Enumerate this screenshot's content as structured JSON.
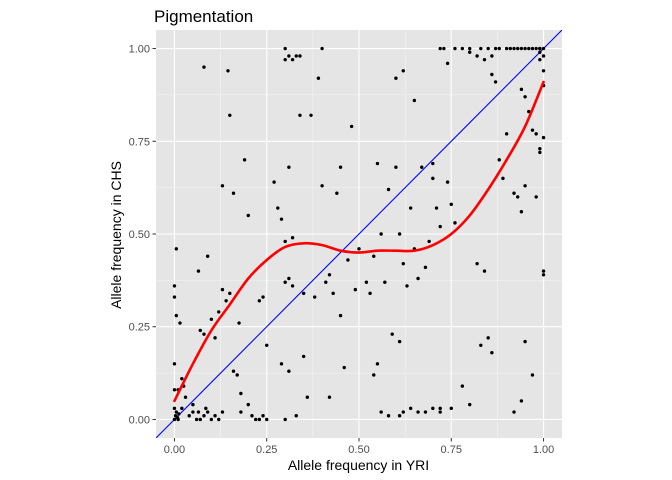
{
  "chart_data": {
    "type": "scatter",
    "title": "Pigmentation",
    "xlabel": "Allele frequency in YRI",
    "ylabel": "Allele frequency in CHS",
    "xlim": [
      -0.05,
      1.05
    ],
    "ylim": [
      -0.05,
      1.05
    ],
    "x_ticks": [
      0.0,
      0.25,
      0.5,
      0.75,
      1.0
    ],
    "x_tick_labels": [
      "0.00",
      "0.25",
      "0.50",
      "0.75",
      "1.00"
    ],
    "y_ticks": [
      0.0,
      0.25,
      0.5,
      0.75,
      1.0
    ],
    "y_tick_labels": [
      "0.00",
      "0.25",
      "0.50",
      "0.75",
      "1.00"
    ],
    "grid": true,
    "colors": {
      "panel": "#e5e5e5",
      "grid_major": "#ffffff",
      "points": "#000000",
      "identity_line": "#0000ff",
      "smooth_line": "#ff0000"
    },
    "points": [
      [
        0.0,
        0.0
      ],
      [
        0.003,
        0.01
      ],
      [
        0.005,
        0.02
      ],
      [
        0.008,
        0.005
      ],
      [
        0.0,
        0.03
      ],
      [
        0.012,
        0.015
      ],
      [
        0.01,
        0.0
      ],
      [
        0.0,
        0.15
      ],
      [
        0.0,
        0.08
      ],
      [
        0.0,
        0.33
      ],
      [
        0.0,
        0.36
      ],
      [
        0.005,
        0.46
      ],
      [
        0.005,
        0.28
      ],
      [
        0.015,
        0.26
      ],
      [
        0.01,
        0.08
      ],
      [
        0.02,
        0.11
      ],
      [
        0.025,
        0.09
      ],
      [
        0.03,
        0.06
      ],
      [
        0.02,
        0.03
      ],
      [
        0.04,
        0.01
      ],
      [
        0.05,
        0.02
      ],
      [
        0.05,
        0.04
      ],
      [
        0.06,
        0.0
      ],
      [
        0.065,
        0.02
      ],
      [
        0.07,
        0.0
      ],
      [
        0.08,
        0.01
      ],
      [
        0.085,
        0.03
      ],
      [
        0.09,
        0.02
      ],
      [
        0.1,
        0.0
      ],
      [
        0.11,
        0.01
      ],
      [
        0.12,
        0.0
      ],
      [
        0.13,
        0.02
      ],
      [
        0.065,
        0.4
      ],
      [
        0.07,
        0.24
      ],
      [
        0.08,
        0.23
      ],
      [
        0.09,
        0.44
      ],
      [
        0.1,
        0.27
      ],
      [
        0.11,
        0.22
      ],
      [
        0.12,
        0.29
      ],
      [
        0.13,
        0.35
      ],
      [
        0.13,
        0.63
      ],
      [
        0.14,
        0.32
      ],
      [
        0.145,
        0.94
      ],
      [
        0.15,
        0.82
      ],
      [
        0.15,
        0.34
      ],
      [
        0.16,
        0.61
      ],
      [
        0.16,
        0.13
      ],
      [
        0.17,
        0.12
      ],
      [
        0.175,
        0.26
      ],
      [
        0.18,
        0.07
      ],
      [
        0.18,
        0.02
      ],
      [
        0.19,
        0.7
      ],
      [
        0.2,
        0.55
      ],
      [
        0.08,
        0.95
      ],
      [
        0.2,
        0.04
      ],
      [
        0.21,
        0.01
      ],
      [
        0.22,
        0.0
      ],
      [
        0.23,
        0.0
      ],
      [
        0.24,
        0.01
      ],
      [
        0.25,
        0.0
      ],
      [
        0.23,
        0.32
      ],
      [
        0.24,
        0.33
      ],
      [
        0.25,
        0.2
      ],
      [
        0.27,
        0.64
      ],
      [
        0.28,
        0.57
      ],
      [
        0.29,
        0.54
      ],
      [
        0.3,
        0.48
      ],
      [
        0.3,
        0.97
      ],
      [
        0.3,
        1.0
      ],
      [
        0.31,
        0.98
      ],
      [
        0.32,
        0.97
      ],
      [
        0.33,
        0.98
      ],
      [
        0.34,
        0.98
      ],
      [
        0.34,
        0.82
      ],
      [
        0.31,
        0.68
      ],
      [
        0.32,
        0.49
      ],
      [
        0.32,
        0.36
      ],
      [
        0.31,
        0.38
      ],
      [
        0.3,
        0.37
      ],
      [
        0.29,
        0.15
      ],
      [
        0.31,
        0.13
      ],
      [
        0.3,
        0.0
      ],
      [
        0.33,
        0.01
      ],
      [
        0.35,
        0.17
      ],
      [
        0.35,
        0.34
      ],
      [
        0.36,
        0.06
      ],
      [
        0.37,
        0.82
      ],
      [
        0.38,
        0.33
      ],
      [
        0.39,
        0.92
      ],
      [
        0.4,
        1.0
      ],
      [
        0.4,
        0.63
      ],
      [
        0.41,
        0.37
      ],
      [
        0.42,
        0.39
      ],
      [
        0.42,
        0.06
      ],
      [
        0.43,
        0.34
      ],
      [
        0.44,
        0.61
      ],
      [
        0.45,
        0.68
      ],
      [
        0.45,
        0.28
      ],
      [
        0.46,
        0.14
      ],
      [
        0.47,
        0.43
      ],
      [
        0.48,
        0.79
      ],
      [
        0.49,
        0.35
      ],
      [
        0.5,
        0.46
      ],
      [
        0.52,
        0.37
      ],
      [
        0.53,
        0.34
      ],
      [
        0.54,
        0.44
      ],
      [
        0.55,
        0.15
      ],
      [
        0.55,
        0.69
      ],
      [
        0.56,
        0.5
      ],
      [
        0.57,
        0.37
      ],
      [
        0.58,
        0.62
      ],
      [
        0.59,
        0.23
      ],
      [
        0.6,
        0.68
      ],
      [
        0.61,
        0.5
      ],
      [
        0.61,
        0.21
      ],
      [
        0.62,
        0.94
      ],
      [
        0.6,
        0.92
      ],
      [
        0.62,
        0.42
      ],
      [
        0.63,
        0.36
      ],
      [
        0.64,
        0.57
      ],
      [
        0.65,
        0.46
      ],
      [
        0.65,
        0.86
      ],
      [
        0.66,
        0.38
      ],
      [
        0.67,
        0.68
      ],
      [
        0.68,
        0.41
      ],
      [
        0.69,
        0.48
      ],
      [
        0.7,
        0.69
      ],
      [
        0.7,
        0.65
      ],
      [
        0.71,
        0.57
      ],
      [
        0.72,
        0.52
      ],
      [
        0.72,
        0.02
      ],
      [
        0.72,
        0.03
      ],
      [
        0.74,
        0.96
      ],
      [
        0.74,
        0.64
      ],
      [
        0.75,
        0.58
      ],
      [
        0.76,
        0.53
      ],
      [
        0.75,
        0.03
      ],
      [
        0.7,
        0.03
      ],
      [
        0.68,
        0.02
      ],
      [
        0.66,
        0.02
      ],
      [
        0.64,
        0.03
      ],
      [
        0.62,
        0.02
      ],
      [
        0.61,
        0.01
      ],
      [
        0.58,
        0.01
      ],
      [
        0.56,
        0.02
      ],
      [
        0.54,
        0.12
      ],
      [
        0.72,
        1.0
      ],
      [
        0.73,
        1.0
      ],
      [
        0.76,
        1.0
      ],
      [
        0.78,
        1.0
      ],
      [
        0.8,
        1.0
      ],
      [
        0.83,
        1.0
      ],
      [
        0.85,
        1.0
      ],
      [
        0.87,
        1.0
      ],
      [
        0.88,
        1.0
      ],
      [
        0.9,
        1.0
      ],
      [
        0.91,
        1.0
      ],
      [
        0.92,
        1.0
      ],
      [
        0.93,
        1.0
      ],
      [
        0.94,
        1.0
      ],
      [
        0.95,
        1.0
      ],
      [
        0.96,
        1.0
      ],
      [
        0.97,
        1.0
      ],
      [
        0.98,
        1.0
      ],
      [
        0.99,
        1.0
      ],
      [
        1.0,
        1.0
      ],
      [
        0.99,
        0.99
      ],
      [
        1.0,
        0.98
      ],
      [
        0.99,
        0.97
      ],
      [
        0.8,
        0.99
      ],
      [
        0.82,
        0.98
      ],
      [
        0.84,
        0.97
      ],
      [
        0.86,
        0.98
      ],
      [
        0.87,
        0.91
      ],
      [
        0.86,
        0.93
      ],
      [
        0.89,
        0.65
      ],
      [
        0.88,
        0.7
      ],
      [
        0.9,
        0.77
      ],
      [
        0.92,
        0.61
      ],
      [
        0.93,
        0.6
      ],
      [
        0.94,
        0.56
      ],
      [
        0.95,
        0.63
      ],
      [
        0.94,
        0.89
      ],
      [
        0.95,
        0.87
      ],
      [
        0.96,
        0.83
      ],
      [
        0.97,
        0.78
      ],
      [
        0.98,
        0.77
      ],
      [
        0.99,
        0.72
      ],
      [
        0.99,
        0.73
      ],
      [
        1.0,
        0.9
      ],
      [
        1.0,
        0.94
      ],
      [
        1.0,
        0.76
      ],
      [
        1.0,
        0.4
      ],
      [
        1.0,
        0.39
      ],
      [
        0.98,
        0.6
      ],
      [
        0.95,
        0.21
      ],
      [
        0.97,
        0.12
      ],
      [
        0.94,
        0.05
      ],
      [
        0.92,
        0.02
      ],
      [
        0.85,
        0.22
      ],
      [
        0.86,
        0.18
      ],
      [
        0.84,
        0.4
      ],
      [
        0.82,
        0.42
      ],
      [
        0.83,
        0.2
      ],
      [
        0.78,
        0.09
      ],
      [
        0.8,
        0.04
      ],
      [
        0.99,
        1.0
      ]
    ],
    "smooth": {
      "x": [
        0.0,
        0.05,
        0.1,
        0.15,
        0.2,
        0.25,
        0.3,
        0.35,
        0.4,
        0.45,
        0.5,
        0.55,
        0.6,
        0.65,
        0.7,
        0.75,
        0.8,
        0.85,
        0.9,
        0.95,
        1.0
      ],
      "y": [
        0.05,
        0.15,
        0.24,
        0.31,
        0.38,
        0.43,
        0.465,
        0.475,
        0.47,
        0.455,
        0.45,
        0.455,
        0.455,
        0.455,
        0.47,
        0.5,
        0.55,
        0.62,
        0.7,
        0.79,
        0.91
      ]
    },
    "identity_line": {
      "slope": 1,
      "intercept": 0
    }
  }
}
